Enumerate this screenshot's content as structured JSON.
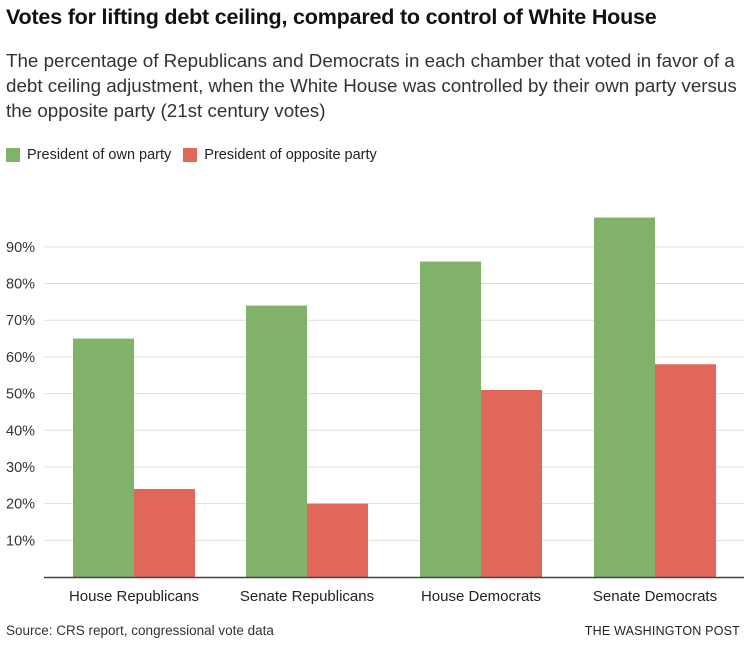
{
  "header": {
    "title": "Votes for lifting debt ceiling, compared to control of White House",
    "subtitle": "The percentage of Republicans and Democrats in each chamber that voted in favor of a debt ceiling adjustment, when the White House was controlled by their own party versus the opposite party (21st century votes)"
  },
  "legend": {
    "own_label": "President of own party",
    "opposite_label": "President of opposite party"
  },
  "footer": {
    "source": "Source: CRS report, congressional vote data",
    "credit": "THE WASHINGTON POST"
  },
  "colors": {
    "own": "#80b26c",
    "opposite": "#e0675a",
    "grid": "#dddddd",
    "axis": "#444444"
  },
  "chart_data": {
    "type": "bar",
    "title": "Votes for lifting debt ceiling, compared to control of White House",
    "categories": [
      "House Republicans",
      "Senate Republicans",
      "House Democrats",
      "Senate Democrats"
    ],
    "series": [
      {
        "name": "President of own party",
        "values": [
          65,
          74,
          86,
          98
        ]
      },
      {
        "name": "President of opposite party",
        "values": [
          24,
          20,
          51,
          58
        ]
      }
    ],
    "yticks": [
      "10%",
      "20%",
      "30%",
      "40%",
      "50%",
      "60%",
      "70%",
      "80%",
      "90%"
    ],
    "ylim": [
      0,
      100
    ],
    "grid": true,
    "legend_position": "top-left"
  }
}
